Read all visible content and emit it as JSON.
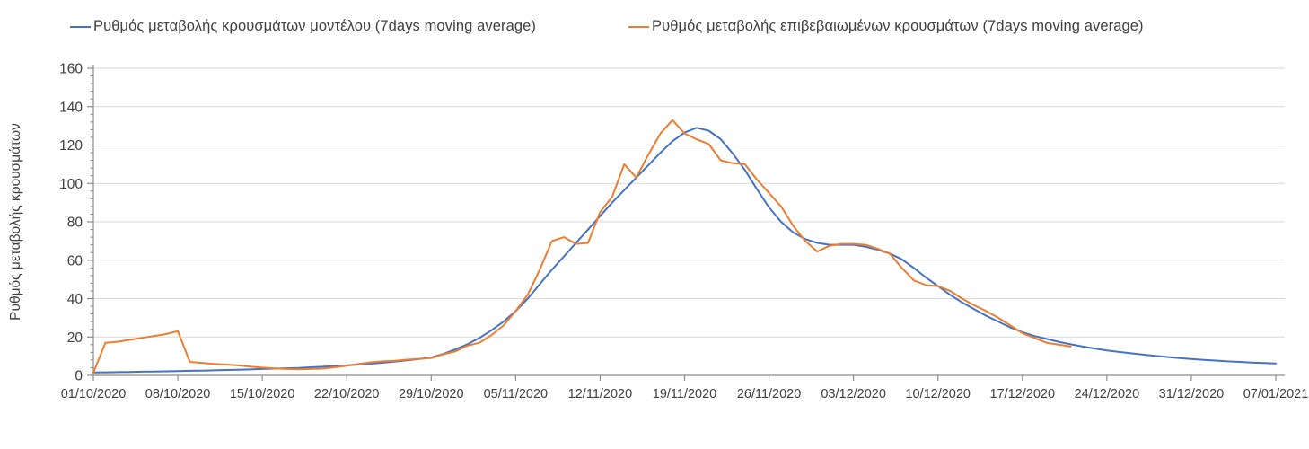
{
  "chart_data": {
    "type": "line",
    "title": "",
    "xlabel": "",
    "ylabel": "Ρυθμός μεταβολής κρουσμάτων",
    "ylim": [
      0,
      160
    ],
    "y_major_unit": 20,
    "y_minor_unit": 4,
    "y_tick_labels": [
      "0",
      "20",
      "40",
      "60",
      "80",
      "100",
      "120",
      "140",
      "160"
    ],
    "grid": "horizontal",
    "legend_position": "top",
    "x_frequency": "daily",
    "points_per_tick": 7,
    "x_tick_labels": [
      "01/10/2020",
      "08/10/2020",
      "15/10/2020",
      "22/10/2020",
      "29/10/2020",
      "05/11/2020",
      "12/11/2020",
      "19/11/2020",
      "26/11/2020",
      "03/12/2020",
      "10/12/2020",
      "17/12/2020",
      "24/12/2020",
      "31/12/2020",
      "07/01/2021"
    ],
    "series": [
      {
        "name": "Ρυθμός μεταβολής κρουσμάτων μοντέλου (7days moving average)",
        "color": "#4472C4",
        "start_day": 0,
        "start_date": "01/10/2020",
        "end_date": "07/01/2021",
        "values": [
          1.5,
          1.6,
          1.7,
          1.8,
          1.9,
          2.0,
          2.1,
          2.2,
          2.4,
          2.5,
          2.6,
          2.8,
          2.9,
          3.1,
          3.3,
          3.5,
          3.7,
          3.9,
          4.2,
          4.5,
          4.8,
          5.2,
          5.6,
          6.1,
          6.6,
          7.2,
          7.8,
          8.5,
          9.3,
          11.2,
          13.5,
          16.2,
          19.5,
          23.5,
          28.0,
          33.5,
          40.0,
          47.5,
          55.0,
          62.0,
          69.0,
          76.0,
          83.0,
          90.0,
          96.5,
          103.0,
          109.5,
          116.0,
          122.0,
          126.5,
          129.0,
          127.5,
          123.0,
          115.5,
          107.0,
          97.0,
          87.5,
          80.0,
          74.5,
          71.0,
          69.0,
          68.0,
          68.0,
          68.0,
          67.0,
          65.5,
          63.5,
          60.5,
          56.0,
          51.0,
          46.5,
          42.0,
          38.0,
          34.5,
          31.0,
          28.0,
          25.0,
          22.5,
          20.5,
          19.0,
          17.5,
          16.2,
          15.0,
          14.0,
          13.0,
          12.2,
          11.5,
          10.8,
          10.2,
          9.6,
          9.0,
          8.5,
          8.1,
          7.7,
          7.3,
          7.0,
          6.7,
          6.4,
          6.2
        ]
      },
      {
        "name": "Ρυθμός μεταβολής επιβεβαιωμένων κρουσμάτων (7days moving average)",
        "color": "#ED7D31",
        "start_day": 0,
        "start_date": "01/10/2020",
        "end_date": "21/12/2020",
        "values": [
          1.4,
          17.0,
          17.5,
          18.5,
          19.5,
          20.5,
          21.5,
          23.0,
          7.0,
          6.5,
          6.0,
          5.6,
          5.2,
          4.6,
          4.0,
          3.6,
          3.3,
          3.2,
          3.3,
          3.5,
          4.2,
          5.0,
          6.0,
          6.8,
          7.3,
          7.6,
          8.2,
          8.6,
          9.0,
          11.0,
          12.5,
          15.5,
          17.0,
          21.0,
          26.0,
          33.5,
          42.0,
          55.0,
          70.0,
          72.0,
          68.5,
          69.0,
          85.0,
          93.0,
          110.0,
          103.0,
          115.0,
          126.0,
          133.0,
          126.0,
          123.0,
          120.5,
          112.0,
          110.5,
          110.0,
          102.0,
          95.0,
          88.0,
          78.0,
          70.0,
          64.5,
          67.5,
          68.5,
          68.5,
          68.0,
          66.0,
          63.5,
          56.0,
          49.5,
          47.0,
          46.5,
          44.0,
          40.0,
          36.5,
          33.5,
          30.0,
          26.0,
          22.0,
          19.5,
          17.0,
          16.0,
          15.0
        ]
      }
    ],
    "colors": {
      "gridline": "#D9D9D9",
      "axis": "#8c8c8c",
      "tick_label": "#404040",
      "axis_title": "#3f3f3f"
    }
  }
}
